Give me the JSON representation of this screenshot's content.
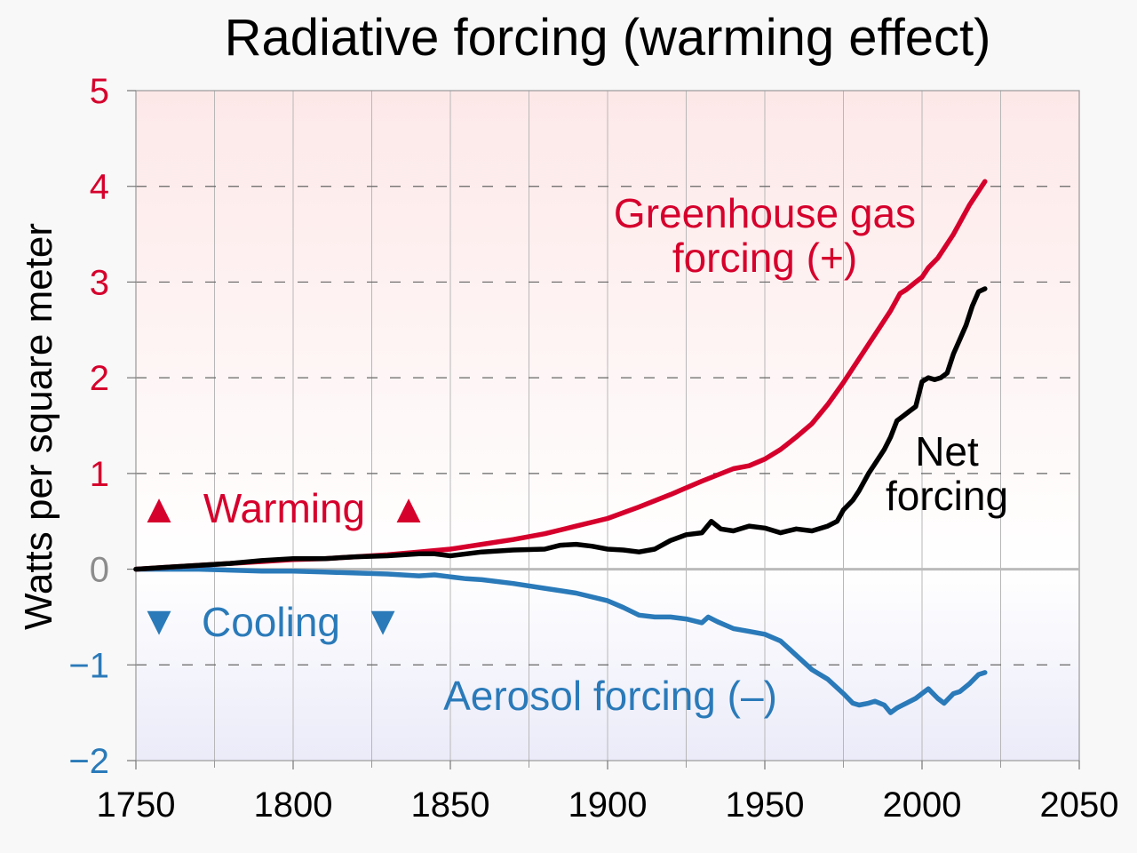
{
  "chart_data": {
    "type": "line",
    "title": "Radiative forcing (warming effect)",
    "xlabel": "",
    "ylabel": "Watts per square meter",
    "xlim": [
      1750,
      2050
    ],
    "ylim": [
      -2,
      5
    ],
    "x_ticks": [
      "1750",
      "1800",
      "1850",
      "1900",
      "1950",
      "2000",
      "2050"
    ],
    "y_ticks": [
      {
        "value": 5,
        "label": "5"
      },
      {
        "value": 4,
        "label": "4"
      },
      {
        "value": 3,
        "label": "3"
      },
      {
        "value": 2,
        "label": "2"
      },
      {
        "value": 1,
        "label": "1"
      },
      {
        "value": 0,
        "label": "0"
      },
      {
        "value": -1,
        "label": "−1"
      },
      {
        "value": -2,
        "label": "−2"
      }
    ],
    "series": [
      {
        "name": "Greenhouse gas forcing (+)",
        "label_lines": [
          "Greenhouse gas",
          "forcing (+)"
        ],
        "color": "#d6002c",
        "x": [
          1750,
          1760,
          1770,
          1780,
          1790,
          1800,
          1810,
          1820,
          1830,
          1840,
          1850,
          1860,
          1870,
          1880,
          1890,
          1900,
          1910,
          1920,
          1930,
          1940,
          1945,
          1950,
          1955,
          1960,
          1965,
          1970,
          1975,
          1980,
          1985,
          1990,
          1993,
          1995,
          1998,
          2000,
          2002,
          2005,
          2010,
          2015,
          2020
        ],
        "values": [
          0,
          0.02,
          0.04,
          0.06,
          0.08,
          0.1,
          0.11,
          0.13,
          0.15,
          0.18,
          0.21,
          0.26,
          0.31,
          0.37,
          0.45,
          0.53,
          0.65,
          0.78,
          0.92,
          1.05,
          1.08,
          1.15,
          1.25,
          1.38,
          1.52,
          1.72,
          1.95,
          2.2,
          2.45,
          2.7,
          2.88,
          2.92,
          3.0,
          3.05,
          3.15,
          3.25,
          3.5,
          3.8,
          4.05
        ]
      },
      {
        "name": "Net forcing",
        "label_lines": [
          "Net",
          "forcing"
        ],
        "color": "#000000",
        "x": [
          1750,
          1760,
          1770,
          1780,
          1790,
          1800,
          1810,
          1820,
          1830,
          1840,
          1845,
          1850,
          1860,
          1870,
          1880,
          1885,
          1890,
          1895,
          1900,
          1905,
          1910,
          1915,
          1920,
          1925,
          1930,
          1933,
          1936,
          1940,
          1945,
          1950,
          1955,
          1960,
          1965,
          1970,
          1973,
          1975,
          1978,
          1980,
          1983,
          1985,
          1988,
          1990,
          1992,
          1994,
          1996,
          1998,
          2000,
          2002,
          2004,
          2006,
          2008,
          2010,
          2012,
          2014,
          2016,
          2018,
          2020
        ],
        "values": [
          0,
          0.02,
          0.04,
          0.06,
          0.09,
          0.11,
          0.11,
          0.13,
          0.14,
          0.16,
          0.16,
          0.14,
          0.18,
          0.2,
          0.21,
          0.25,
          0.26,
          0.24,
          0.21,
          0.2,
          0.18,
          0.21,
          0.3,
          0.36,
          0.38,
          0.5,
          0.42,
          0.4,
          0.45,
          0.43,
          0.38,
          0.42,
          0.4,
          0.45,
          0.5,
          0.62,
          0.72,
          0.82,
          1.0,
          1.1,
          1.25,
          1.38,
          1.55,
          1.6,
          1.65,
          1.7,
          1.96,
          2.0,
          1.98,
          2.0,
          2.05,
          2.25,
          2.4,
          2.55,
          2.75,
          2.9,
          2.93
        ]
      },
      {
        "name": "Aerosol forcing (–)",
        "label_lines": [
          "Aerosol forcing (–)"
        ],
        "color": "#2a7ab9",
        "x": [
          1750,
          1770,
          1790,
          1800,
          1810,
          1820,
          1830,
          1840,
          1845,
          1850,
          1855,
          1860,
          1870,
          1880,
          1890,
          1900,
          1905,
          1910,
          1915,
          1920,
          1925,
          1930,
          1932,
          1935,
          1940,
          1945,
          1950,
          1955,
          1960,
          1965,
          1970,
          1975,
          1978,
          1980,
          1983,
          1985,
          1988,
          1990,
          1992,
          1995,
          1998,
          2000,
          2002,
          2005,
          2007,
          2010,
          2012,
          2015,
          2018,
          2020
        ],
        "values": [
          0,
          0,
          -0.02,
          -0.02,
          -0.03,
          -0.04,
          -0.05,
          -0.07,
          -0.06,
          -0.08,
          -0.1,
          -0.11,
          -0.15,
          -0.2,
          -0.25,
          -0.33,
          -0.4,
          -0.48,
          -0.5,
          -0.5,
          -0.52,
          -0.56,
          -0.5,
          -0.55,
          -0.62,
          -0.65,
          -0.68,
          -0.75,
          -0.9,
          -1.05,
          -1.15,
          -1.3,
          -1.4,
          -1.42,
          -1.4,
          -1.38,
          -1.42,
          -1.5,
          -1.45,
          -1.4,
          -1.35,
          -1.3,
          -1.25,
          -1.35,
          -1.4,
          -1.3,
          -1.28,
          -1.2,
          -1.1,
          -1.08
        ]
      }
    ],
    "annotations": {
      "warming": {
        "text": "Warming",
        "symbol": "▲",
        "color": "#d6002c"
      },
      "cooling": {
        "text": "Cooling",
        "symbol": "▼",
        "color": "#2a7ab9"
      }
    },
    "grid": true,
    "background": {
      "top": "#fde8e8",
      "mid": "#ffffff",
      "bottom": "#ebebf9"
    }
  }
}
